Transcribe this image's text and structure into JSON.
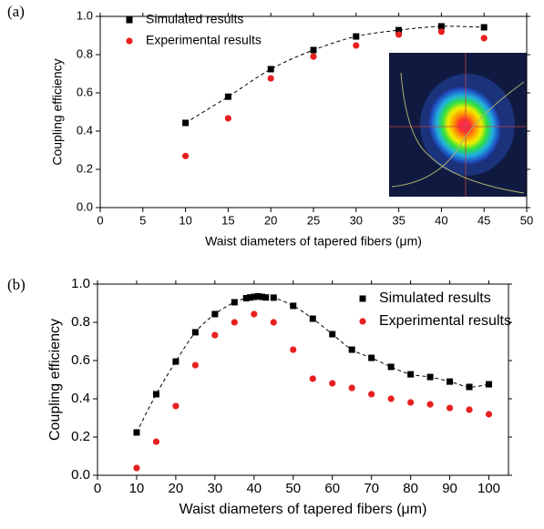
{
  "chart_data": [
    {
      "type": "scatter",
      "label": "(a)",
      "x_label": "Waist diameters of tapered fibers (μm)",
      "y_label": "Coupling efficiency",
      "xlim": [
        0,
        50
      ],
      "xticks": [
        0,
        5,
        10,
        15,
        20,
        25,
        30,
        35,
        40,
        45,
        50
      ],
      "ylim": [
        0,
        1
      ],
      "yticks": [
        {
          "value": 0,
          "label": "0.0"
        },
        0.2,
        0.4,
        0.6,
        0.8,
        {
          "value": 1,
          "label": "1.0"
        }
      ],
      "legend": "upper left",
      "fit_line": true,
      "series": [
        {
          "name": "Simulated results",
          "color": "#000000",
          "marker": "square",
          "x": [
            10,
            15,
            20,
            25,
            30,
            35,
            40,
            45
          ],
          "values": [
            0.443,
            0.58,
            0.724,
            0.824,
            0.895,
            0.928,
            0.948,
            0.943
          ]
        },
        {
          "name": "Experimental results",
          "color": "#e8201f",
          "marker": "circle",
          "x": [
            10,
            15,
            20,
            25,
            30,
            35,
            40,
            45
          ],
          "values": [
            0.27,
            0.467,
            0.676,
            0.79,
            0.848,
            0.905,
            0.92,
            0.886
          ]
        }
      ]
    },
    {
      "type": "scatter",
      "label": "(b)",
      "x_label": "Waist diameters of tapered fibers (μm)",
      "y_label": "Coupling efficiency",
      "xlim": [
        0,
        105
      ],
      "xticks": [
        0,
        10,
        20,
        30,
        40,
        50,
        60,
        70,
        80,
        90,
        100
      ],
      "ylim": [
        0,
        1
      ],
      "yticks": [
        {
          "value": 0,
          "label": "0.0"
        },
        0.2,
        0.4,
        0.6,
        0.8,
        {
          "value": 1,
          "label": "1.0"
        }
      ],
      "legend": "upper right",
      "fit_line": true,
      "series": [
        {
          "name": "Simulated results",
          "color": "#000000",
          "marker": "square",
          "x": [
            10,
            15,
            20,
            25,
            30,
            35,
            38,
            39,
            40,
            41,
            42,
            43,
            45,
            50,
            55,
            60,
            65,
            70,
            75,
            80,
            85,
            90,
            95,
            100
          ],
          "values": [
            0.224,
            0.424,
            0.595,
            0.748,
            0.843,
            0.905,
            0.926,
            0.93,
            0.933,
            0.936,
            0.933,
            0.93,
            0.929,
            0.886,
            0.819,
            0.738,
            0.657,
            0.614,
            0.567,
            0.528,
            0.514,
            0.49,
            0.462,
            0.476
          ]
        },
        {
          "name": "Experimental results",
          "color": "#e8201f",
          "marker": "circle",
          "x": [
            10,
            15,
            20,
            25,
            30,
            35,
            40,
            45,
            50,
            55,
            60,
            65,
            70,
            75,
            80,
            85,
            90,
            95,
            100
          ],
          "values": [
            0.038,
            0.176,
            0.362,
            0.576,
            0.733,
            0.8,
            0.843,
            0.8,
            0.657,
            0.505,
            0.481,
            0.457,
            0.424,
            0.4,
            0.381,
            0.371,
            0.352,
            0.343,
            0.319
          ]
        }
      ]
    }
  ]
}
